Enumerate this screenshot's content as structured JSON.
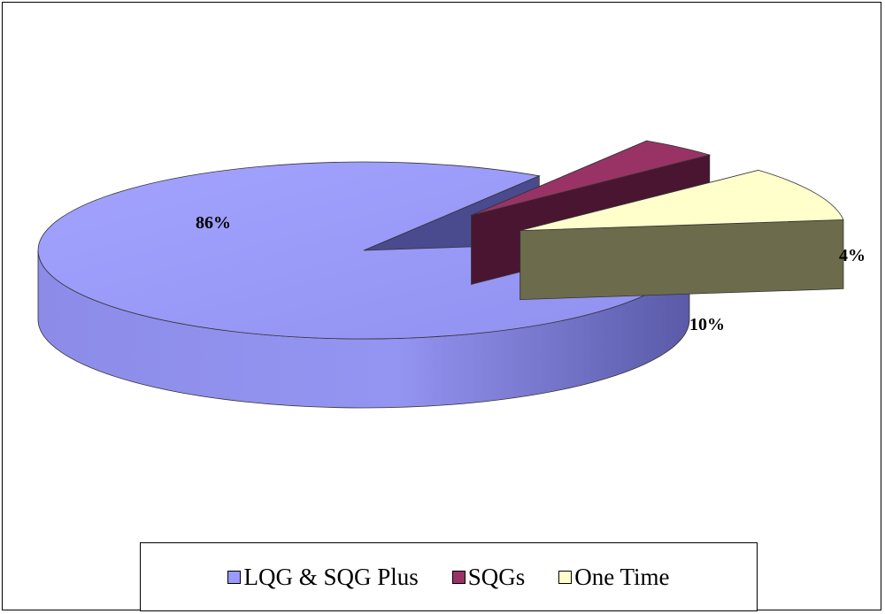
{
  "chart_data": {
    "type": "pie",
    "style": "3d-exploded",
    "title": "",
    "slices": [
      {
        "name": "LQG & SQG Plus",
        "value": 86,
        "label": "86%",
        "color": "#9999ff"
      },
      {
        "name": "SQGs",
        "value": 4,
        "label": "4%",
        "color": "#993366"
      },
      {
        "name": "One Time",
        "value": 10,
        "label": "10%",
        "color": "#ffffcc"
      }
    ],
    "legend": {
      "position": "bottom"
    }
  }
}
